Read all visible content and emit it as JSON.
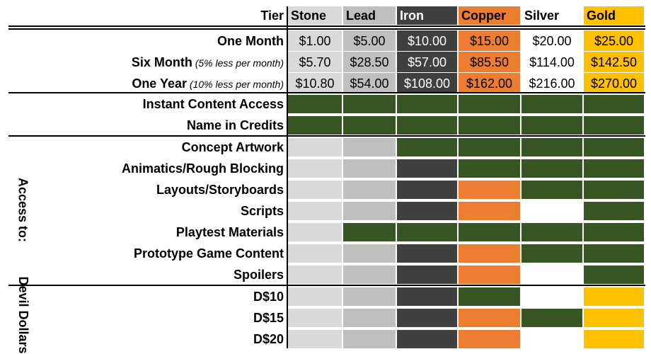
{
  "header": {
    "tier_label": "Tier",
    "tiers": [
      {
        "name": "Stone",
        "bg": "#d9d9d9",
        "fg": "#000000"
      },
      {
        "name": "Lead",
        "bg": "#bfbfbf",
        "fg": "#000000"
      },
      {
        "name": "Iron",
        "bg": "#404040",
        "fg": "#ffffff"
      },
      {
        "name": "Copper",
        "bg": "#ed7d31",
        "fg": "#000000"
      },
      {
        "name": "Silver",
        "bg": "#ffffff",
        "fg": "#000000"
      },
      {
        "name": "Gold",
        "bg": "#ffc000",
        "fg": "#000000"
      }
    ]
  },
  "pricing": [
    {
      "label": "One Month",
      "note": "",
      "prices": [
        "$1.00",
        "$5.00",
        "$10.00",
        "$15.00",
        "$20.00",
        "$25.00"
      ]
    },
    {
      "label": "Six Month",
      "note": "(5% less per month)",
      "prices": [
        "$5.70",
        "$28.50",
        "$57.00",
        "$85.50",
        "$114.00",
        "$142.50"
      ]
    },
    {
      "label": "One Year",
      "note": "(10% less per month)",
      "prices": [
        "$10.80",
        "$54.00",
        "$108.00",
        "$162.00",
        "$216.00",
        "$270.00"
      ]
    }
  ],
  "colors": {
    "included": "#375623"
  },
  "general_features": [
    {
      "label": "Instant Content Access",
      "included": [
        true,
        true,
        true,
        true,
        true,
        true
      ]
    },
    {
      "label": "Name in Credits",
      "included": [
        true,
        true,
        true,
        true,
        true,
        true
      ]
    }
  ],
  "access_group_label": "Access to:",
  "access_features": [
    {
      "label": "Concept Artwork",
      "included": [
        false,
        false,
        true,
        true,
        true,
        true
      ]
    },
    {
      "label": "Animatics/Rough Blocking",
      "included": [
        false,
        false,
        false,
        true,
        true,
        true
      ]
    },
    {
      "label": "Layouts/Storyboards",
      "included": [
        false,
        false,
        false,
        false,
        true,
        true
      ]
    },
    {
      "label": "Scripts",
      "included": [
        false,
        false,
        false,
        false,
        false,
        true
      ]
    },
    {
      "label": "Playtest Materials",
      "included": [
        false,
        true,
        true,
        true,
        true,
        true
      ]
    },
    {
      "label": "Prototype Game Content",
      "included": [
        false,
        false,
        false,
        false,
        true,
        true
      ]
    },
    {
      "label": "Spoilers",
      "included": [
        false,
        false,
        false,
        false,
        false,
        true
      ]
    }
  ],
  "devil_group_label": "Devil Dollars",
  "devil_features": [
    {
      "label": "D$10",
      "included": [
        false,
        false,
        false,
        true,
        false,
        false
      ]
    },
    {
      "label": "D$15",
      "included": [
        false,
        false,
        false,
        false,
        true,
        false
      ]
    },
    {
      "label": "D$20",
      "included": [
        false,
        false,
        false,
        false,
        false,
        false
      ]
    }
  ]
}
